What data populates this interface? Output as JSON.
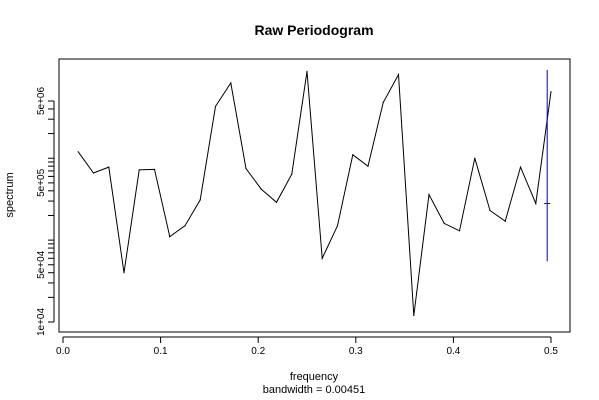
{
  "chart_data": {
    "type": "line",
    "title": "Raw Periodogram",
    "xlabel": "frequency",
    "sublabel": "bandwidth = 0.00451",
    "ylabel": "spectrum",
    "y_scale": "log",
    "xlim": [
      0,
      0.5
    ],
    "x_ticks": [
      0.0,
      0.1,
      0.2,
      0.3,
      0.4,
      0.5
    ],
    "x_tick_labels": [
      "0.0",
      "0.1",
      "0.2",
      "0.3",
      "0.4",
      "0.5"
    ],
    "y_ticks": [
      10000,
      50000,
      500000,
      5000000
    ],
    "y_tick_labels": [
      "1e+04",
      "5e+04",
      "5e+05",
      "5e+06"
    ],
    "grid": false,
    "series": [
      {
        "color": "#000000",
        "x": [
          0.0156,
          0.0312,
          0.0469,
          0.0625,
          0.0781,
          0.0938,
          0.1094,
          0.125,
          0.1406,
          0.1562,
          0.1719,
          0.1875,
          0.2031,
          0.2188,
          0.2344,
          0.25,
          0.2656,
          0.2812,
          0.2969,
          0.3125,
          0.3281,
          0.3438,
          0.3594,
          0.375,
          0.3906,
          0.4062,
          0.4219,
          0.4375,
          0.4531,
          0.4688,
          0.4844,
          0.5
        ],
        "y": [
          1200000,
          660000,
          780000,
          40000,
          720000,
          730000,
          110000,
          150000,
          310000,
          4300000,
          8300000,
          750000,
          420000,
          290000,
          640000,
          11500000,
          60000,
          150000,
          1100000,
          800000,
          4800000,
          10500000,
          12000,
          360000,
          160000,
          130000,
          1000000,
          230000,
          170000,
          780000,
          280000,
          6500000
        ]
      }
    ],
    "confidence_bar": {
      "color": "#0000cc",
      "x": 0.4961,
      "upper": 12000000,
      "center": 280000,
      "lower": 55000
    }
  }
}
